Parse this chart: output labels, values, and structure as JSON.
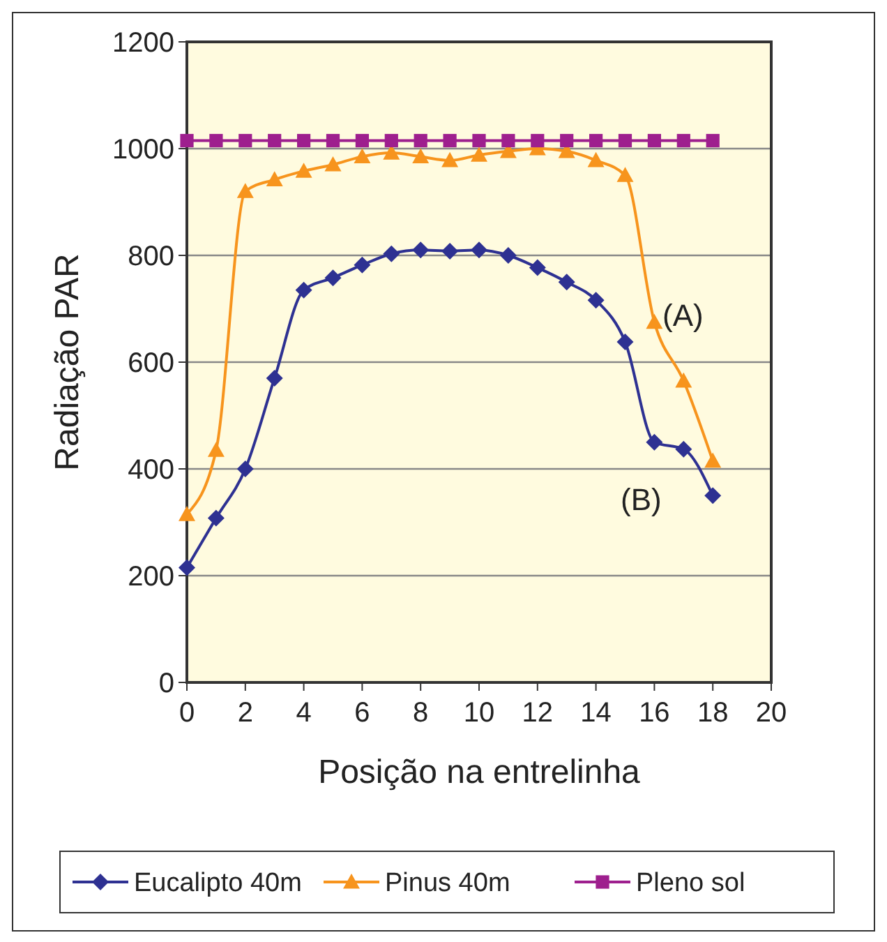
{
  "chart_data": {
    "type": "line",
    "xlabel": "Posição na entrelinha",
    "ylabel": "Radiação PAR",
    "x": [
      0,
      1,
      2,
      3,
      4,
      5,
      6,
      7,
      8,
      9,
      10,
      11,
      12,
      13,
      14,
      15,
      16,
      17,
      18
    ],
    "series": [
      {
        "name": "Eucalipto 40m",
        "color": "#2e3192",
        "marker": "diamond",
        "values": [
          215,
          308,
          400,
          570,
          735,
          758,
          782,
          803,
          810,
          808,
          810,
          800,
          777,
          750,
          716,
          638,
          450,
          437,
          350
        ]
      },
      {
        "name": "Pinus 40m",
        "color": "#f7941d",
        "marker": "triangle",
        "values": [
          315,
          435,
          920,
          942,
          958,
          970,
          985,
          992,
          985,
          978,
          988,
          995,
          1000,
          995,
          978,
          950,
          675,
          565,
          415
        ]
      },
      {
        "name": "Pleno sol",
        "color": "#9e1f8e",
        "marker": "square",
        "values": [
          1015,
          1015,
          1015,
          1015,
          1015,
          1015,
          1015,
          1015,
          1015,
          1015,
          1015,
          1015,
          1015,
          1015,
          1015,
          1015,
          1015,
          1015,
          1015
        ]
      }
    ],
    "xlim": [
      0,
      20
    ],
    "xticks": [
      0,
      2,
      4,
      6,
      8,
      10,
      12,
      14,
      16,
      18,
      20
    ],
    "ylim": [
      0,
      1200
    ],
    "yticks": [
      0,
      200,
      400,
      600,
      800,
      1000,
      1200
    ],
    "grid": "y",
    "legend": "bottom",
    "annotations": [
      "(A)",
      "(B)"
    ]
  }
}
